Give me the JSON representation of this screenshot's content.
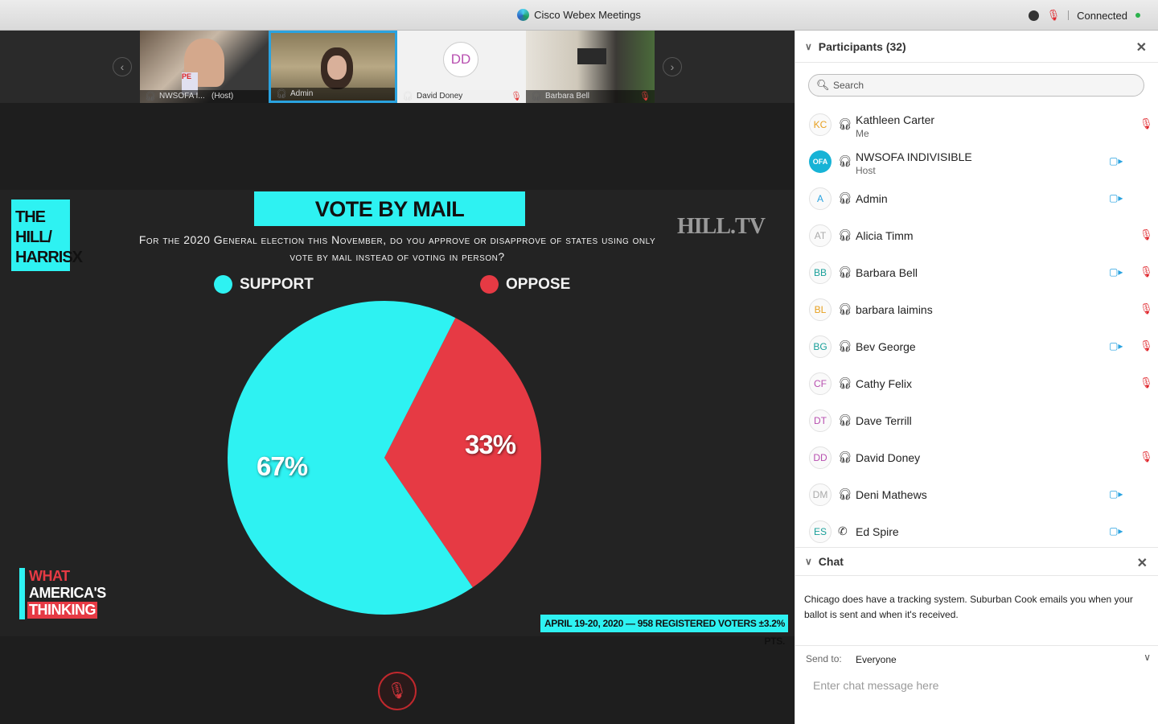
{
  "window": {
    "title": "Cisco Webex Meetings",
    "status": "Connected"
  },
  "filmstrip": {
    "thumbs": [
      {
        "name": "NWSOFA I...",
        "tag": "(Host)"
      },
      {
        "name": "Admin",
        "tag": ""
      },
      {
        "name": "David Doney",
        "initials": "DD"
      },
      {
        "name": "Barbara Bell"
      }
    ]
  },
  "slide": {
    "logo_text": "THE HILL/ HARRISX",
    "brand": "HILL.TV",
    "title": "VOTE BY MAIL",
    "question": "For the 2020 General election this November, do you approve or disapprove of states using only vote by mail instead of voting in person?",
    "footnote": "APRIL 19-20, 2020 — 958 REGISTERED VOTERS ±3.2% PTS.",
    "wat": [
      "WHAT",
      "AMERICA'S",
      "THINKING"
    ]
  },
  "chart_data": {
    "type": "pie",
    "title": "VOTE BY MAIL",
    "labels": [
      "SUPPORT",
      "OPPOSE"
    ],
    "values": [
      67,
      33
    ],
    "value_labels": [
      "67%",
      "33%"
    ],
    "colors": [
      "#2ef2f2",
      "#e63a44"
    ],
    "legend": "top"
  },
  "panel": {
    "participants_title": "Participants (32)",
    "search_placeholder": "Search",
    "participants": [
      {
        "initials": "KC",
        "color": "#e8a020",
        "name": "Kathleen Carter",
        "role": "Me",
        "video": false,
        "muted": true,
        "phone": false
      },
      {
        "initials": "OFA",
        "color": "#ffffff",
        "name": "NWSOFA INDIVISIBLE",
        "role": "Host",
        "video": true,
        "muted": false,
        "phone": false
      },
      {
        "initials": "A",
        "color": "#2aa3e0",
        "name": "Admin",
        "role": "",
        "video": true,
        "muted": false,
        "phone": false
      },
      {
        "initials": "AT",
        "color": "#aaaaaa",
        "name": "Alicia Timm",
        "role": "",
        "video": false,
        "muted": true,
        "phone": false
      },
      {
        "initials": "BB",
        "color": "#1aa09a",
        "name": "Barbara Bell",
        "role": "",
        "video": true,
        "muted": true,
        "phone": false
      },
      {
        "initials": "BL",
        "color": "#e8a020",
        "name": "barbara laimins",
        "role": "",
        "video": false,
        "muted": true,
        "phone": false
      },
      {
        "initials": "BG",
        "color": "#1aa09a",
        "name": "Bev George",
        "role": "",
        "video": true,
        "muted": true,
        "phone": false
      },
      {
        "initials": "CF",
        "color": "#b84fb0",
        "name": "Cathy Felix",
        "role": "",
        "video": false,
        "muted": true,
        "phone": false
      },
      {
        "initials": "DT",
        "color": "#b84fb0",
        "name": "Dave Terrill",
        "role": "",
        "video": false,
        "muted": false,
        "phone": false
      },
      {
        "initials": "DD",
        "color": "#b84fb0",
        "name": "David Doney",
        "role": "",
        "video": false,
        "muted": true,
        "phone": false
      },
      {
        "initials": "DM",
        "color": "#aaaaaa",
        "name": "Deni Mathews",
        "role": "",
        "video": true,
        "muted": false,
        "phone": false
      },
      {
        "initials": "ES",
        "color": "#1aa09a",
        "name": "Ed Spire",
        "role": "",
        "video": true,
        "muted": false,
        "phone": true
      }
    ],
    "chat_title": "Chat",
    "chat_message": "Chicago does have a tracking system. Suburban Cook emails you when your ballot is sent and when it's received.",
    "send_to_label": "Send to:",
    "send_to_value": "Everyone",
    "chat_placeholder": "Enter chat message here"
  }
}
